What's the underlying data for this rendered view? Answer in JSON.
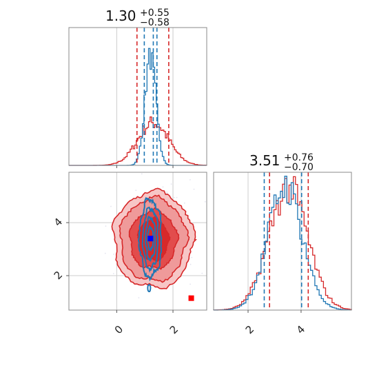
{
  "colors": {
    "red": "#d62728",
    "blue": "#1f77b4",
    "grid": "#cccccc",
    "frame": "#888888",
    "truth_red": "#ff0000",
    "truth_blue": "#0000ff"
  },
  "chart_data": [
    {
      "type": "histogram",
      "panel": "marginal-x",
      "title_value": "1.30",
      "title_plus": "+0.55",
      "title_minus": "−0.58",
      "xlim": [
        -1.7,
        3.2
      ],
      "grid": true,
      "red_quantiles": [
        0.72,
        1.85
      ],
      "blue_quantiles": [
        0.98,
        1.3,
        1.43
      ],
      "series": [
        {
          "name": "",
          "color": "#d62728",
          "shape": "broad",
          "center": 1.3,
          "sigma": 0.55
        },
        {
          "name": "",
          "color": "#1f77b4",
          "shape": "narrow",
          "center": 1.2,
          "sigma": 0.22
        }
      ]
    },
    {
      "type": "histogram",
      "panel": "marginal-y",
      "title_value": "3.51",
      "title_plus": "+0.76",
      "title_minus": "−0.70",
      "xlim": [
        0.7,
        5.9
      ],
      "grid": true,
      "xticks": [
        "2",
        "4"
      ],
      "xtick_values": [
        2,
        4
      ],
      "red_quantiles": [
        2.81,
        4.27
      ],
      "blue_quantiles": [
        2.61,
        4.02
      ],
      "series": [
        {
          "name": "",
          "color": "#d62728",
          "center": 3.51,
          "sigma": 0.73
        },
        {
          "name": "",
          "color": "#1f77b4",
          "center": 3.4,
          "sigma": 0.65
        }
      ]
    },
    {
      "type": "contour",
      "panel": "joint",
      "xlim": [
        -1.7,
        3.2
      ],
      "ylim": [
        0.7,
        5.9
      ],
      "grid": true,
      "xticks": [
        "0",
        "2"
      ],
      "xtick_values": [
        0,
        2
      ],
      "yticks": [
        "2",
        "4"
      ],
      "ytick_values": [
        2,
        4
      ],
      "red_center": [
        1.3,
        3.51
      ],
      "blue_center": [
        1.2,
        3.4
      ],
      "truth_points": [
        {
          "x": 2.65,
          "y": 1.15,
          "color": "#ff0000"
        },
        {
          "x": 1.2,
          "y": 3.4,
          "color": "#0000ff"
        }
      ]
    }
  ]
}
